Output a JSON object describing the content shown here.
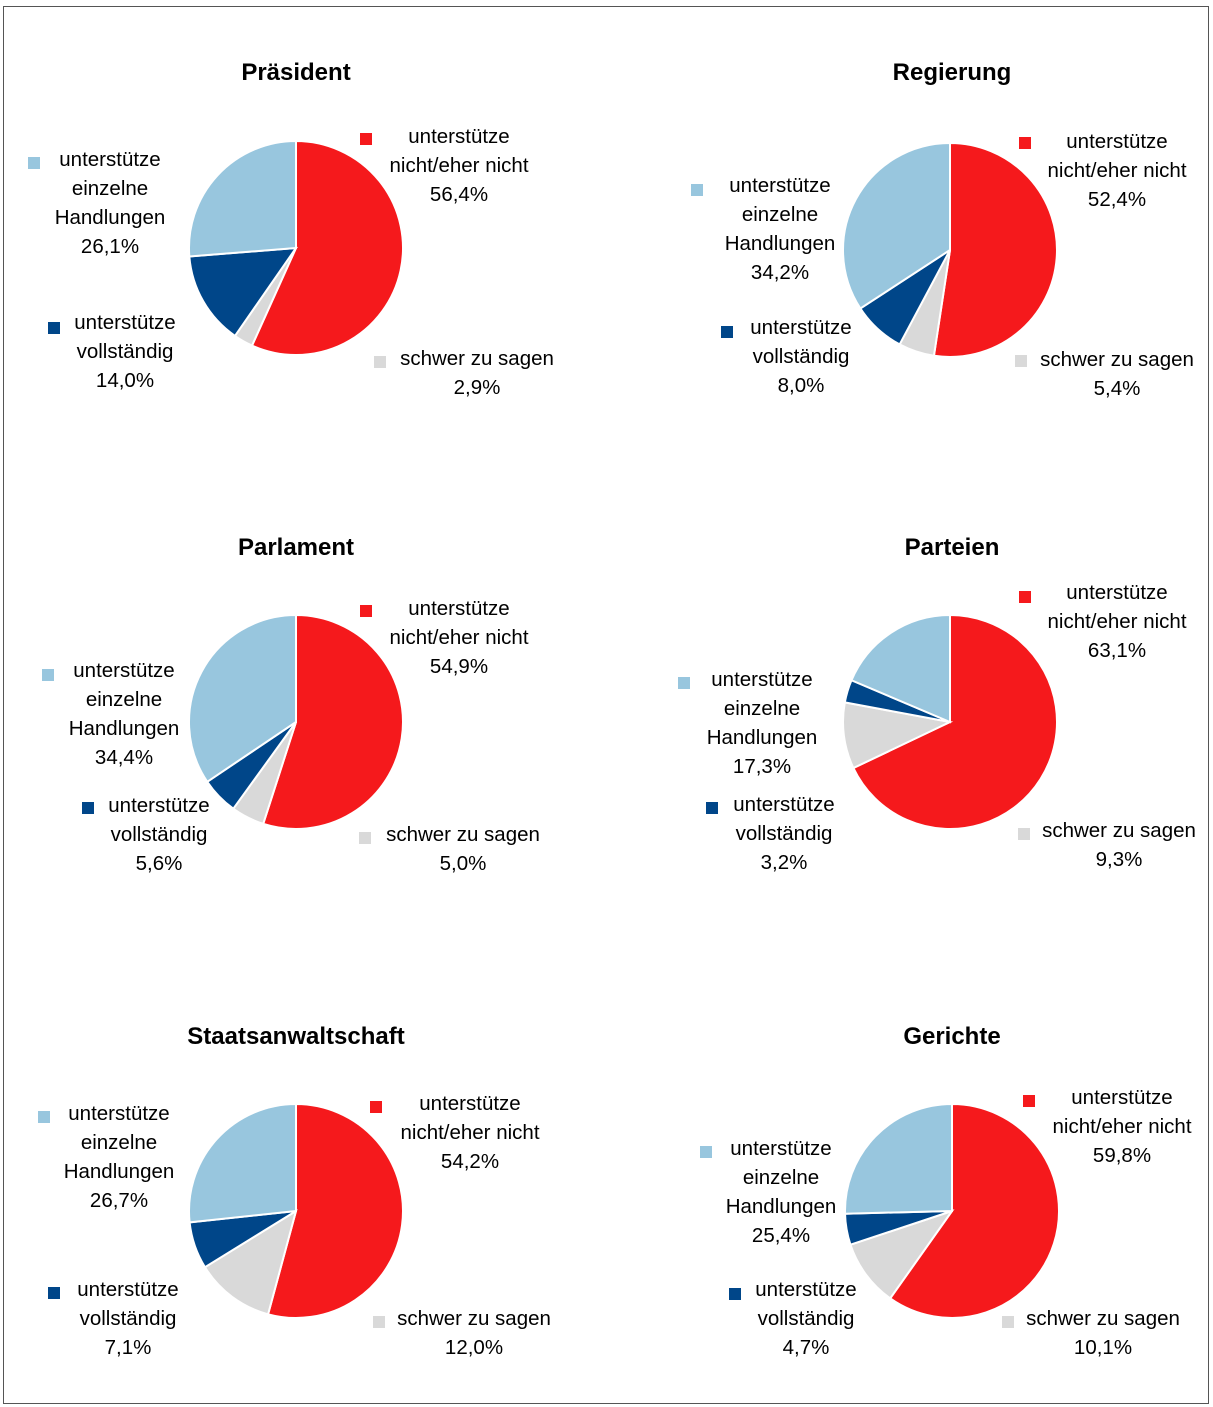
{
  "chart_data": [
    {
      "type": "pie",
      "title": "Präsident",
      "slices": [
        {
          "label": "unterstütze nicht/eher nicht",
          "value": 56.4,
          "value_text": "56,4%",
          "color": "#f5191c"
        },
        {
          "label": "schwer zu sagen",
          "value": 2.9,
          "value_text": "2,9%",
          "color": "#d9d9d9"
        },
        {
          "label": "unterstütze vollständig",
          "value": 14.0,
          "value_text": "14,0%",
          "color": "#004689"
        },
        {
          "label": "unterstütze einzelne Handlungen",
          "value": 26.1,
          "value_text": "26,1%",
          "color": "#98c6de"
        }
      ]
    },
    {
      "type": "pie",
      "title": "Regierung",
      "slices": [
        {
          "label": "unterstütze nicht/eher nicht",
          "value": 52.4,
          "value_text": "52,4%",
          "color": "#f5191c"
        },
        {
          "label": "schwer zu sagen",
          "value": 5.4,
          "value_text": "5,4%",
          "color": "#d9d9d9"
        },
        {
          "label": "unterstütze vollständig",
          "value": 8.0,
          "value_text": "8,0%",
          "color": "#004689"
        },
        {
          "label": "unterstütze einzelne Handlungen",
          "value": 34.2,
          "value_text": "34,2%",
          "color": "#98c6de"
        }
      ]
    },
    {
      "type": "pie",
      "title": "Parlament",
      "slices": [
        {
          "label": "unterstütze nicht/eher nicht",
          "value": 54.9,
          "value_text": "54,9%",
          "color": "#f5191c"
        },
        {
          "label": "schwer zu sagen",
          "value": 5.0,
          "value_text": "5,0%",
          "color": "#d9d9d9"
        },
        {
          "label": "unterstütze vollständig",
          "value": 5.6,
          "value_text": "5,6%",
          "color": "#004689"
        },
        {
          "label": "unterstütze einzelne Handlungen",
          "value": 34.4,
          "value_text": "34,4%",
          "color": "#98c6de"
        }
      ]
    },
    {
      "type": "pie",
      "title": "Parteien",
      "slices": [
        {
          "label": "unterstütze nicht/eher nicht",
          "value": 63.1,
          "value_text": "63,1%",
          "color": "#f5191c"
        },
        {
          "label": "schwer zu sagen",
          "value": 9.3,
          "value_text": "9,3%",
          "color": "#d9d9d9"
        },
        {
          "label": "unterstütze vollständig",
          "value": 3.2,
          "value_text": "3,2%",
          "color": "#004689"
        },
        {
          "label": "unterstütze einzelne Handlungen",
          "value": 17.3,
          "value_text": "17,3%",
          "color": "#98c6de"
        }
      ]
    },
    {
      "type": "pie",
      "title": "Staatsanwaltschaft",
      "slices": [
        {
          "label": "unterstütze nicht/eher nicht",
          "value": 54.2,
          "value_text": "54,2%",
          "color": "#f5191c"
        },
        {
          "label": "schwer zu sagen",
          "value": 12.0,
          "value_text": "12,0%",
          "color": "#d9d9d9"
        },
        {
          "label": "unterstütze vollständig",
          "value": 7.1,
          "value_text": "7,1%",
          "color": "#004689"
        },
        {
          "label": "unterstütze einzelne Handlungen",
          "value": 26.7,
          "value_text": "26,7%",
          "color": "#98c6de"
        }
      ]
    },
    {
      "type": "pie",
      "title": "Gerichte",
      "slices": [
        {
          "label": "unterstütze nicht/eher nicht",
          "value": 59.8,
          "value_text": "59,8%",
          "color": "#f5191c"
        },
        {
          "label": "schwer zu sagen",
          "value": 10.1,
          "value_text": "10,1%",
          "color": "#d9d9d9"
        },
        {
          "label": "unterstütze vollständig",
          "value": 4.7,
          "value_text": "4,7%",
          "color": "#004689"
        },
        {
          "label": "unterstütze einzelne Handlungen",
          "value": 25.4,
          "value_text": "25,4%",
          "color": "#98c6de"
        }
      ]
    }
  ]
}
